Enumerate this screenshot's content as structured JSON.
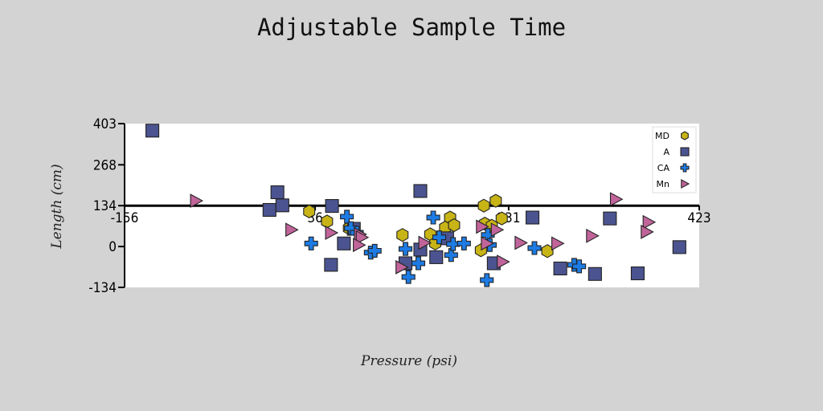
{
  "chart_data": {
    "type": "scatter",
    "title": "Adjustable Sample Time",
    "xlabel": "Pressure (psi)",
    "ylabel": "Length (cm)",
    "xlim": [
      -156,
      423
    ],
    "ylim": [
      -134,
      403
    ],
    "x_ticks": [
      {
        "value": -156,
        "label": "-156"
      },
      {
        "value": 36,
        "label": "36"
      },
      {
        "value": 231,
        "label": "231"
      },
      {
        "value": 423,
        "label": "423"
      }
    ],
    "y_ticks": [
      {
        "value": 403,
        "label": "403"
      },
      {
        "value": 268,
        "label": "268"
      },
      {
        "value": 134,
        "label": "134"
      },
      {
        "value": 0,
        "label": "0"
      },
      {
        "value": -134,
        "label": "-134"
      }
    ],
    "x_axis_at_y": 134,
    "grid": false,
    "legend_position": "top-right",
    "series": [
      {
        "name": "MD",
        "marker": "hexagon",
        "color": "#c8b416",
        "points": [
          [
            30,
            115
          ],
          [
            48,
            82
          ],
          [
            70,
            60
          ],
          [
            124,
            38
          ],
          [
            152,
            40
          ],
          [
            167,
            62
          ],
          [
            172,
            95
          ],
          [
            176,
            70
          ],
          [
            157,
            10
          ],
          [
            206,
            134
          ],
          [
            207,
            75
          ],
          [
            214,
            68
          ],
          [
            218,
            150
          ],
          [
            224,
            92
          ],
          [
            203,
            -12
          ],
          [
            270,
            -15
          ]
        ]
      },
      {
        "name": "A",
        "marker": "square",
        "color": "#4b5490",
        "points": [
          [
            -128,
            380
          ],
          [
            -10,
            120
          ],
          [
            -2,
            178
          ],
          [
            3,
            135
          ],
          [
            53,
            133
          ],
          [
            52,
            -60
          ],
          [
            65,
            10
          ],
          [
            75,
            58
          ],
          [
            127,
            -55
          ],
          [
            142,
            182
          ],
          [
            142,
            -10
          ],
          [
            158,
            -35
          ],
          [
            169,
            27
          ],
          [
            216,
            -55
          ],
          [
            255,
            95
          ],
          [
            283,
            -72
          ],
          [
            318,
            -90
          ],
          [
            333,
            92
          ],
          [
            361,
            -88
          ],
          [
            403,
            -2
          ]
        ]
      },
      {
        "name": "CA",
        "marker": "plus",
        "color": "#1d7be3",
        "points": [
          [
            32,
            10
          ],
          [
            68,
            98
          ],
          [
            72,
            60
          ],
          [
            78,
            45
          ],
          [
            92,
            -20
          ],
          [
            96,
            -14
          ],
          [
            127,
            -8
          ],
          [
            130,
            -100
          ],
          [
            140,
            -55
          ],
          [
            155,
            95
          ],
          [
            161,
            30
          ],
          [
            173,
            -28
          ],
          [
            175,
            8
          ],
          [
            186,
            10
          ],
          [
            209,
            -110
          ],
          [
            210,
            38
          ],
          [
            212,
            5
          ],
          [
            257,
            -5
          ],
          [
            297,
            -60
          ],
          [
            302,
            -65
          ]
        ]
      },
      {
        "name": "Mn",
        "marker": "triangle-right",
        "color": "#c0649a",
        "points": [
          [
            -84,
            150
          ],
          [
            12,
            55
          ],
          [
            52,
            45
          ],
          [
            81,
            40
          ],
          [
            83,
            30
          ],
          [
            80,
            5
          ],
          [
            123,
            -68
          ],
          [
            146,
            12
          ],
          [
            204,
            65
          ],
          [
            209,
            10
          ],
          [
            219,
            55
          ],
          [
            225,
            -50
          ],
          [
            243,
            12
          ],
          [
            280,
            10
          ],
          [
            315,
            35
          ],
          [
            339,
            155
          ],
          [
            372,
            80
          ],
          [
            370,
            48
          ]
        ]
      }
    ]
  }
}
